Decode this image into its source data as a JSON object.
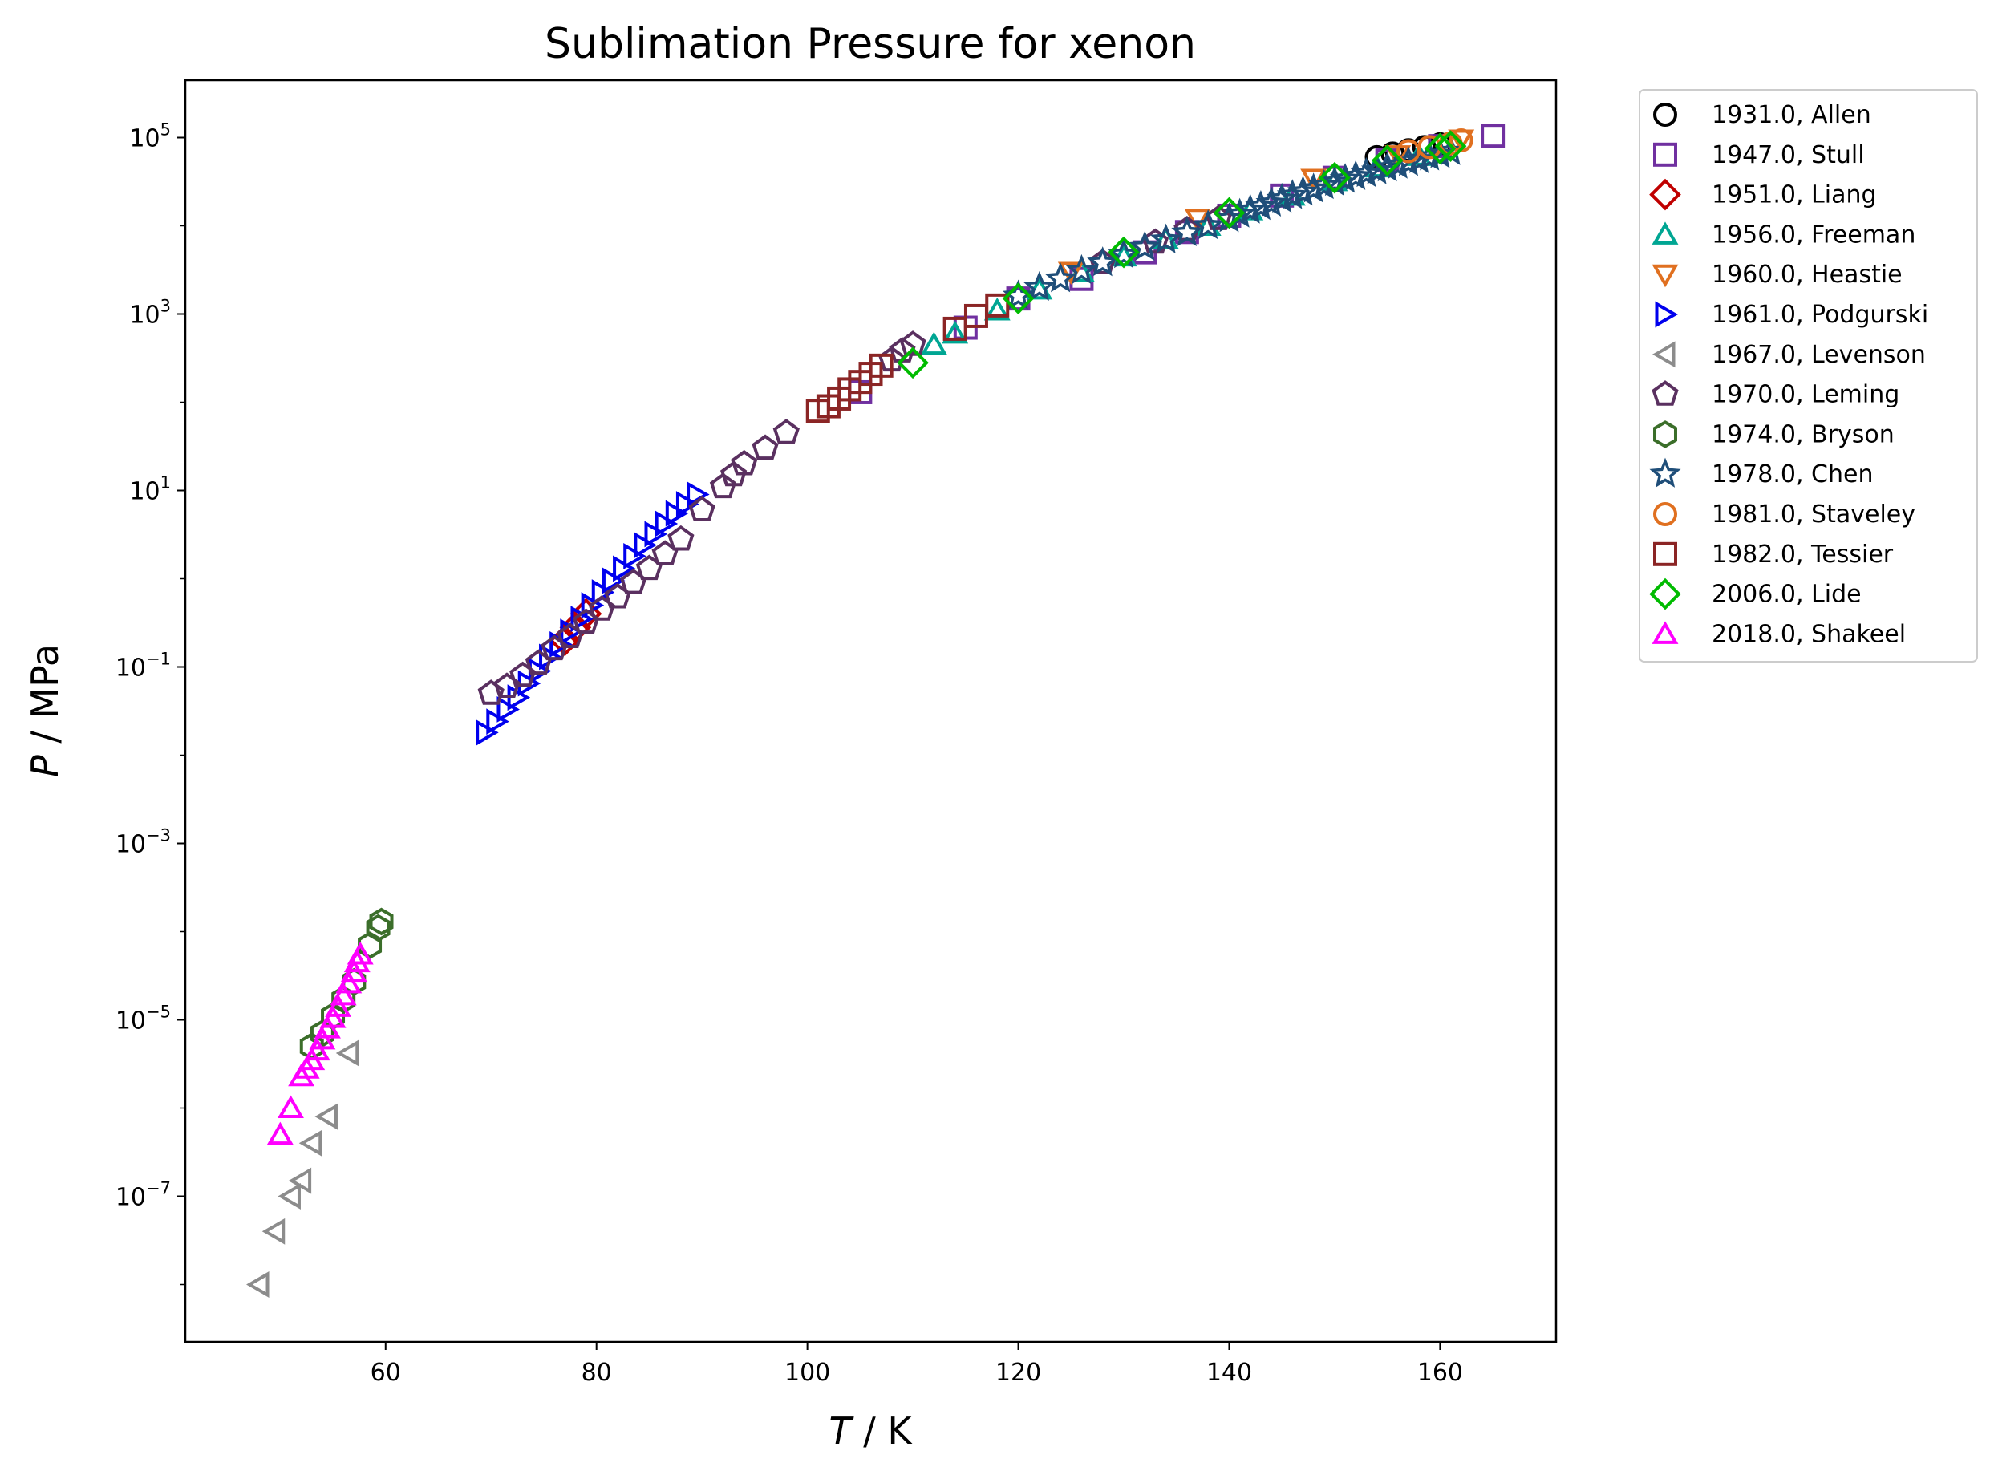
{
  "chart_data": {
    "type": "scatter",
    "title": "Sublimation Pressure for xenon",
    "xlabel_var": "T",
    "xlabel_unit": " / K",
    "ylabel_var": "P",
    "ylabel_unit": " / MPa",
    "xlim": [
      41,
      171
    ],
    "ylim_log10": [
      -8.65,
      5.65
    ],
    "y_scale": "log",
    "grid": false,
    "legend_position": "outside-top-right",
    "x_ticks": [
      {
        "value": 60,
        "label": "60"
      },
      {
        "value": 80,
        "label": "80"
      },
      {
        "value": 100,
        "label": "100"
      },
      {
        "value": 120,
        "label": "120"
      },
      {
        "value": 140,
        "label": "140"
      },
      {
        "value": 160,
        "label": "160"
      }
    ],
    "y_ticks": [
      {
        "exp": -7,
        "base": "10",
        "sup": "−7"
      },
      {
        "exp": -5,
        "base": "10",
        "sup": "−5"
      },
      {
        "exp": -3,
        "base": "10",
        "sup": "−3"
      },
      {
        "exp": -1,
        "base": "10",
        "sup": "−1"
      },
      {
        "exp": 1,
        "base": "10",
        "sup": "1"
      },
      {
        "exp": 3,
        "base": "10",
        "sup": "3"
      },
      {
        "exp": 5,
        "base": "10",
        "sup": "5"
      }
    ],
    "series": [
      {
        "name": "1931.0, Allen",
        "marker": "circle",
        "color": "#000000",
        "points": [
          [
            154,
            60000.0
          ],
          [
            155.5,
            66000.0
          ],
          [
            157,
            72000.0
          ],
          [
            158.5,
            78000.0
          ],
          [
            160,
            84000.0
          ]
        ]
      },
      {
        "name": "1947.0, Stull",
        "marker": "square",
        "color": "#7030a0",
        "points": [
          [
            105,
            130.0
          ],
          [
            115,
            700.0
          ],
          [
            120,
            1500.0
          ],
          [
            126,
            2500.0
          ],
          [
            132,
            5000.0
          ],
          [
            136,
            8500.0
          ],
          [
            140,
            13000.0
          ],
          [
            145,
            22000.0
          ],
          [
            150,
            35000.0
          ],
          [
            155,
            55000.0
          ],
          [
            160,
            80000.0
          ],
          [
            165,
            105000.0
          ]
        ]
      },
      {
        "name": "1951.0, Liang",
        "marker": "diamond",
        "color": "#c00000",
        "points": [
          [
            77,
            0.2
          ],
          [
            78,
            0.28
          ],
          [
            79,
            0.4
          ]
        ]
      },
      {
        "name": "1956.0, Freeman",
        "marker": "triangle-up",
        "color": "#00a693",
        "points": [
          [
            112,
            450.0
          ],
          [
            114,
            600.0
          ],
          [
            118,
            1100.0
          ],
          [
            122,
            1900.0
          ],
          [
            126,
            3000.0
          ],
          [
            130,
            4500.0
          ],
          [
            134,
            7000.0
          ],
          [
            138,
            10000.0
          ],
          [
            142,
            15000.0
          ],
          [
            146,
            22000.0
          ],
          [
            150,
            32000.0
          ],
          [
            154,
            46000.0
          ],
          [
            158,
            62000.0
          ]
        ]
      },
      {
        "name": "1960.0, Heastie",
        "marker": "triangle-down",
        "color": "#e07020",
        "points": [
          [
            125,
            3000.0
          ],
          [
            137,
            12000.0
          ],
          [
            148,
            34000.0
          ],
          [
            156,
            63000.0
          ],
          [
            162,
            95000.0
          ]
        ]
      },
      {
        "name": "1961.0, Podgurski",
        "marker": "triangle-right",
        "color": "#0000ee",
        "points": [
          [
            69.5,
            0.018
          ],
          [
            70.5,
            0.024
          ],
          [
            71.5,
            0.033
          ],
          [
            72.5,
            0.045
          ],
          [
            73.5,
            0.065
          ],
          [
            74.5,
            0.09
          ],
          [
            75.5,
            0.13
          ],
          [
            76.5,
            0.18
          ],
          [
            77.5,
            0.25
          ],
          [
            78.5,
            0.35
          ],
          [
            79.5,
            0.5
          ],
          [
            80.5,
            0.7
          ],
          [
            81.5,
            0.95
          ],
          [
            82.5,
            1.3
          ],
          [
            83.5,
            1.8
          ],
          [
            84.5,
            2.4
          ],
          [
            85.5,
            3.2
          ],
          [
            86.5,
            4.2
          ],
          [
            87.5,
            5.5
          ],
          [
            88.5,
            7.0
          ],
          [
            89.5,
            9.0
          ]
        ]
      },
      {
        "name": "1967.0, Levenson",
        "marker": "triangle-left",
        "color": "#8c8c8c",
        "points": [
          [
            48,
            1e-08
          ],
          [
            49.5,
            4e-08
          ],
          [
            51,
            1e-07
          ],
          [
            52,
            1.5e-07
          ],
          [
            53,
            4e-07
          ],
          [
            54.5,
            8e-07
          ],
          [
            56.5,
            4.2e-06
          ]
        ]
      },
      {
        "name": "1970.0, Leming",
        "marker": "pentagon",
        "color": "#5a3060",
        "points": [
          [
            70,
            0.05
          ],
          [
            71.5,
            0.06
          ],
          [
            73,
            0.08
          ],
          [
            74.5,
            0.11
          ],
          [
            76,
            0.16
          ],
          [
            77.5,
            0.22
          ],
          [
            79,
            0.32
          ],
          [
            80.5,
            0.45
          ],
          [
            82,
            0.62
          ],
          [
            83.5,
            0.9
          ],
          [
            85,
            1.3
          ],
          [
            86.5,
            1.9
          ],
          [
            88,
            2.8
          ],
          [
            90,
            6
          ],
          [
            92,
            11
          ],
          [
            93,
            15
          ],
          [
            94,
            20
          ],
          [
            96,
            30
          ],
          [
            98,
            45
          ],
          [
            108,
            300.0
          ],
          [
            109,
            380.0
          ],
          [
            110,
            450.0
          ],
          [
            128,
            3800.0
          ],
          [
            133,
            6500.0
          ],
          [
            136,
            9000.0
          ],
          [
            139,
            12000.0
          ]
        ]
      },
      {
        "name": "1974.0, Bryson",
        "marker": "hexagon",
        "color": "#3b6e2a",
        "points": [
          [
            53,
            5e-06
          ],
          [
            54,
            7e-06
          ],
          [
            55,
            1.1e-05
          ],
          [
            56,
            1.7e-05
          ],
          [
            57,
            2.7e-05
          ],
          [
            58.5,
            7e-05
          ],
          [
            59.3,
            0.00011
          ],
          [
            59.6,
            0.00013
          ]
        ]
      },
      {
        "name": "1978.0, Chen",
        "marker": "star",
        "color": "#1f4e79",
        "points": [
          [
            120,
            1600.0
          ],
          [
            122,
            2000.0
          ],
          [
            124,
            2500.0
          ],
          [
            126,
            3100.0
          ],
          [
            128,
            3800.0
          ],
          [
            130,
            4700.0
          ],
          [
            132,
            5700.0
          ],
          [
            134,
            6900.0
          ],
          [
            136,
            8300.0
          ],
          [
            138,
            10000.0
          ],
          [
            140,
            12000.0
          ],
          [
            141,
            13500.0
          ],
          [
            142,
            15000.0
          ],
          [
            143,
            16500.0
          ],
          [
            144,
            18000.0
          ],
          [
            145,
            20000.0
          ],
          [
            146,
            22000.0
          ],
          [
            147,
            24000.0
          ],
          [
            148,
            26000.0
          ],
          [
            149,
            28500.0
          ],
          [
            150,
            31000.0
          ],
          [
            151,
            33500.0
          ],
          [
            152,
            36000.0
          ],
          [
            153,
            39000.0
          ],
          [
            154,
            42000.0
          ],
          [
            155,
            45000.0
          ],
          [
            156,
            48500.0
          ],
          [
            157,
            52000.0
          ],
          [
            158,
            56000.0
          ],
          [
            159,
            60000.0
          ],
          [
            160,
            64000.0
          ],
          [
            161,
            69000.0
          ]
        ]
      },
      {
        "name": "1981.0, Staveley",
        "marker": "circle",
        "color": "#e07020",
        "points": [
          [
            157,
            70000.0
          ],
          [
            159,
            78000.0
          ],
          [
            161,
            86000.0
          ],
          [
            162,
            93000.0
          ]
        ]
      },
      {
        "name": "1982.0, Tessier",
        "marker": "square",
        "color": "#8b2525",
        "points": [
          [
            101,
            80
          ],
          [
            102,
            90
          ],
          [
            103,
            110.0
          ],
          [
            104,
            140.0
          ],
          [
            105,
            170.0
          ],
          [
            106,
            210.0
          ],
          [
            107,
            260.0
          ],
          [
            114,
            680.0
          ],
          [
            116,
            950.0
          ],
          [
            118,
            1250.0
          ]
        ]
      },
      {
        "name": "2006.0, Lide",
        "marker": "diamond",
        "color": "#00bb00",
        "points": [
          [
            110,
            280.0
          ],
          [
            120,
            1500.0
          ],
          [
            130,
            5000.0
          ],
          [
            140,
            14000.0
          ],
          [
            150,
            35000.0
          ],
          [
            155,
            55000.0
          ],
          [
            160,
            75000.0
          ],
          [
            161,
            80000.0
          ]
        ]
      },
      {
        "name": "2018.0, Shakeel",
        "marker": "triangle-up",
        "color": "#ff00ff",
        "points": [
          [
            50,
            5e-07
          ],
          [
            51,
            1e-06
          ],
          [
            52,
            2.3e-06
          ],
          [
            52.5,
            2.8e-06
          ],
          [
            53,
            3.5e-06
          ],
          [
            53.5,
            4.5e-06
          ],
          [
            54,
            6e-06
          ],
          [
            54.5,
            8e-06
          ],
          [
            55,
            1.05e-05
          ],
          [
            55.5,
            1.4e-05
          ],
          [
            56,
            1.9e-05
          ],
          [
            56.5,
            2.6e-05
          ],
          [
            57,
            3.5e-05
          ],
          [
            57.3,
            4.5e-05
          ],
          [
            57.6,
            5.5e-05
          ]
        ]
      }
    ]
  }
}
